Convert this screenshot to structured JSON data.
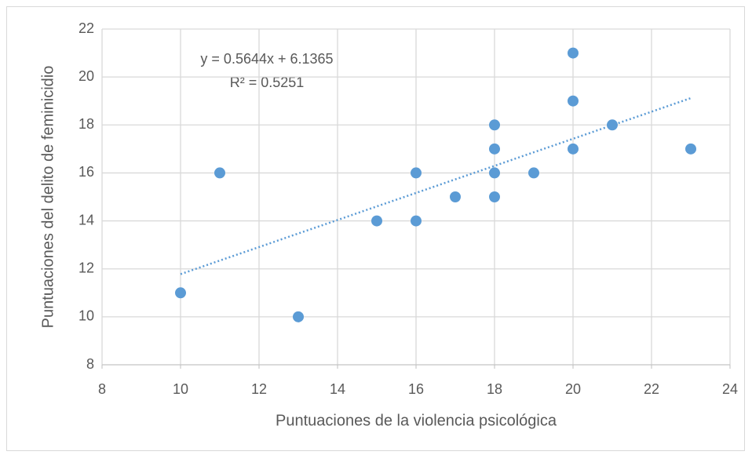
{
  "chart_data": {
    "type": "scatter",
    "x_label": "Puntuaciones de la violencia psicológica",
    "y_label": "Puntuaciones del delito de feminicidio",
    "series": [
      {
        "color": "#5b9bd5",
        "x": [
          10,
          11,
          13,
          15,
          16,
          16,
          17,
          18,
          18,
          18,
          18,
          19,
          20,
          20,
          20,
          21,
          23
        ],
        "values": [
          11,
          16,
          10,
          14,
          16,
          14,
          15,
          18,
          17,
          16,
          15,
          16,
          21,
          19,
          17,
          18,
          17
        ]
      }
    ],
    "trendline": {
      "slope": 0.5644,
      "intercept": 6.1365,
      "equation": "y = 0.5644x + 6.1365",
      "r_squared": 0.5251,
      "r_squared_label": "R² = 0.5251",
      "color": "#5b9bd5"
    },
    "xlim": [
      8,
      24
    ],
    "xticks": [
      8,
      10,
      12,
      14,
      16,
      18,
      20,
      22,
      24
    ],
    "ylim": [
      8,
      22
    ],
    "yticks": [
      8,
      10,
      12,
      14,
      16,
      18,
      20,
      22
    ],
    "grid": true
  }
}
